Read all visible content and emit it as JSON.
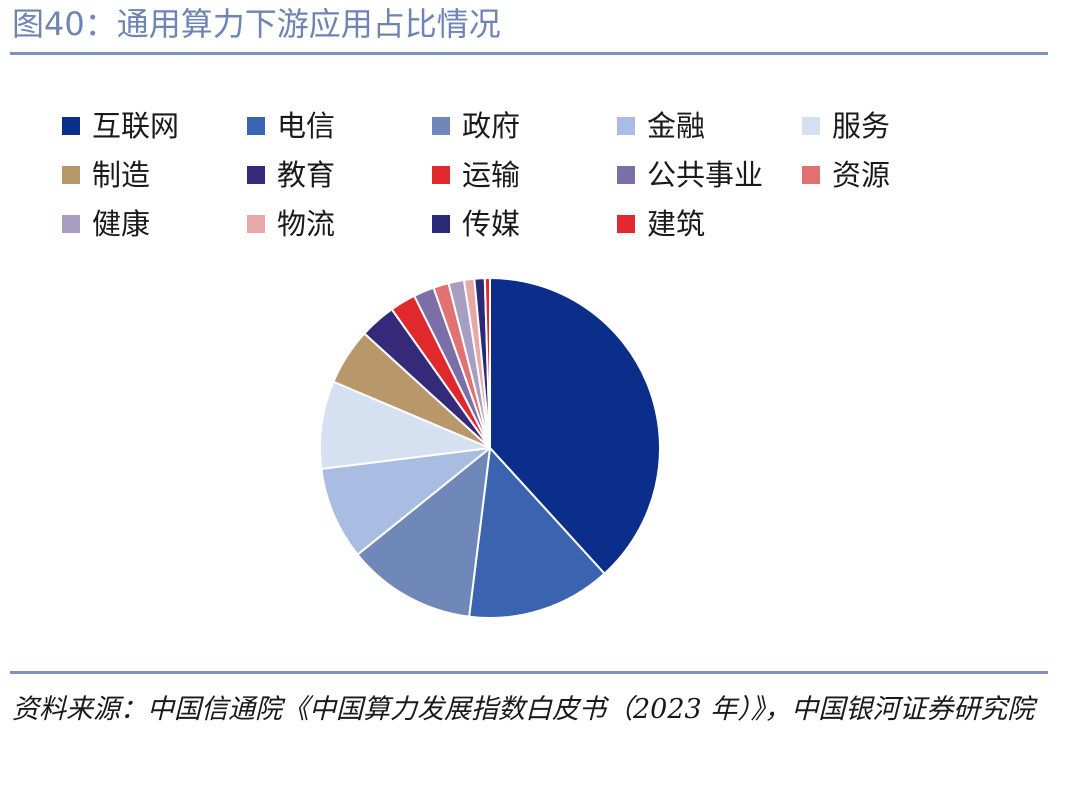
{
  "figure": {
    "title": "图40：通用算力下游应用占比情况",
    "source": "资料来源：中国信通院《中国算力发展指数白皮书（2023 年）》，中国银河证券研究院"
  },
  "chart_data": {
    "type": "pie",
    "title": "",
    "legend_placement": "top",
    "start_angle": "12 o'clock, clockwise",
    "slices": [
      {
        "label": "互联网",
        "value": 39.0,
        "color": "#0b2e8a"
      },
      {
        "label": "电信",
        "value": 14.0,
        "color": "#3a64b0"
      },
      {
        "label": "政府",
        "value": 12.5,
        "color": "#6f88b9"
      },
      {
        "label": "金融",
        "value": 9.0,
        "color": "#a9bde3"
      },
      {
        "label": "服务",
        "value": 8.5,
        "color": "#d5e0f1"
      },
      {
        "label": "制造",
        "value": 5.5,
        "color": "#b8976a"
      },
      {
        "label": "教育",
        "value": 3.5,
        "color": "#35297a"
      },
      {
        "label": "运输",
        "value": 2.5,
        "color": "#e0282d"
      },
      {
        "label": "公共事业",
        "value": 2.0,
        "color": "#7c6ea7"
      },
      {
        "label": "资源",
        "value": 1.5,
        "color": "#e27272"
      },
      {
        "label": "健康",
        "value": 1.5,
        "color": "#a79fc2"
      },
      {
        "label": "物流",
        "value": 1.0,
        "color": "#e8a8a8"
      },
      {
        "label": "传媒",
        "value": 1.0,
        "color": "#2a2a78"
      },
      {
        "label": "建筑",
        "value": 0.5,
        "color": "#e42832"
      }
    ]
  }
}
